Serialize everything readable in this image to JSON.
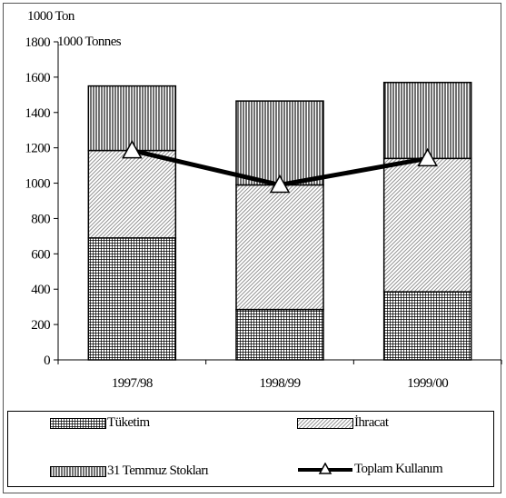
{
  "chart_data": {
    "type": "bar",
    "stacked": true,
    "unit_labels": [
      "1000  Ton",
      "1000 Tonnes"
    ],
    "categories": [
      "1997/98",
      "1998/99",
      "1999/00"
    ],
    "series": [
      {
        "name": "Tüketim",
        "values": [
          690,
          285,
          385
        ],
        "pattern": "grid"
      },
      {
        "name": "İhracat",
        "values": [
          495,
          705,
          755
        ],
        "pattern": "diagonal"
      },
      {
        "name": "31 Temmuz Stokları",
        "values": [
          365,
          475,
          430
        ],
        "pattern": "vertical"
      }
    ],
    "line": {
      "name": "Toplam Kullanım",
      "values": [
        1185,
        990,
        1140
      ]
    },
    "ylim": [
      0,
      1800
    ],
    "yticks": [
      0,
      200,
      400,
      600,
      800,
      1000,
      1200,
      1400,
      1600,
      1800
    ],
    "grid": false,
    "legend_position": "bottom",
    "xlabel": "",
    "ylabel": ""
  }
}
